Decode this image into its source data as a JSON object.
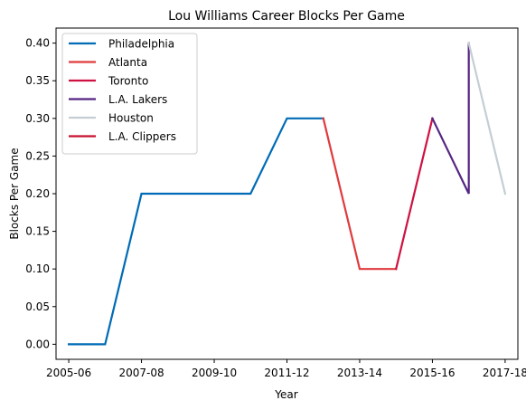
{
  "chart_data": {
    "type": "line",
    "title": "Lou Williams Career Blocks Per Game",
    "xlabel": "Year",
    "ylabel": "Blocks Per Game",
    "x_tick_labels": [
      "2005-06",
      "2007-08",
      "2009-10",
      "2011-12",
      "2013-14",
      "2015-16",
      "2017-18"
    ],
    "x_tick_positions": [
      2005,
      2007,
      2009,
      2011,
      2013,
      2015,
      2017
    ],
    "y_ticks": [
      0.0,
      0.05,
      0.1,
      0.15,
      0.2,
      0.25,
      0.3,
      0.35,
      0.4
    ],
    "y_tick_labels": [
      "0.00",
      "0.05",
      "0.10",
      "0.15",
      "0.20",
      "0.25",
      "0.30",
      "0.35",
      "0.40"
    ],
    "xlim": [
      2004.65,
      2017.35
    ],
    "ylim": [
      -0.02,
      0.42
    ],
    "grid": false,
    "legend_position": "top-left",
    "series": [
      {
        "name": "Philadelphia",
        "color": "#006BB6",
        "x": [
          2005,
          2006,
          2007,
          2008,
          2009,
          2010,
          2011,
          2012
        ],
        "y": [
          0.0,
          0.0,
          0.2,
          0.2,
          0.2,
          0.2,
          0.3,
          0.3
        ]
      },
      {
        "name": "Atlanta",
        "color": "#E03A3E",
        "x": [
          2012,
          2013,
          2014
        ],
        "y": [
          0.3,
          0.1,
          0.1
        ]
      },
      {
        "name": "Toronto",
        "color": "#CE1141",
        "x": [
          2014,
          2015
        ],
        "y": [
          0.1,
          0.3
        ]
      },
      {
        "name": "L.A. Lakers",
        "color": "#552583",
        "x": [
          2015,
          2016,
          2016
        ],
        "y": [
          0.3,
          0.2,
          0.4
        ]
      },
      {
        "name": "Houston",
        "color": "#C4CED4",
        "x": [
          2016,
          2017
        ],
        "y": [
          0.4,
          0.2
        ]
      },
      {
        "name": "L.A. Clippers",
        "color": "#C8102E",
        "x": [],
        "y": []
      }
    ]
  }
}
